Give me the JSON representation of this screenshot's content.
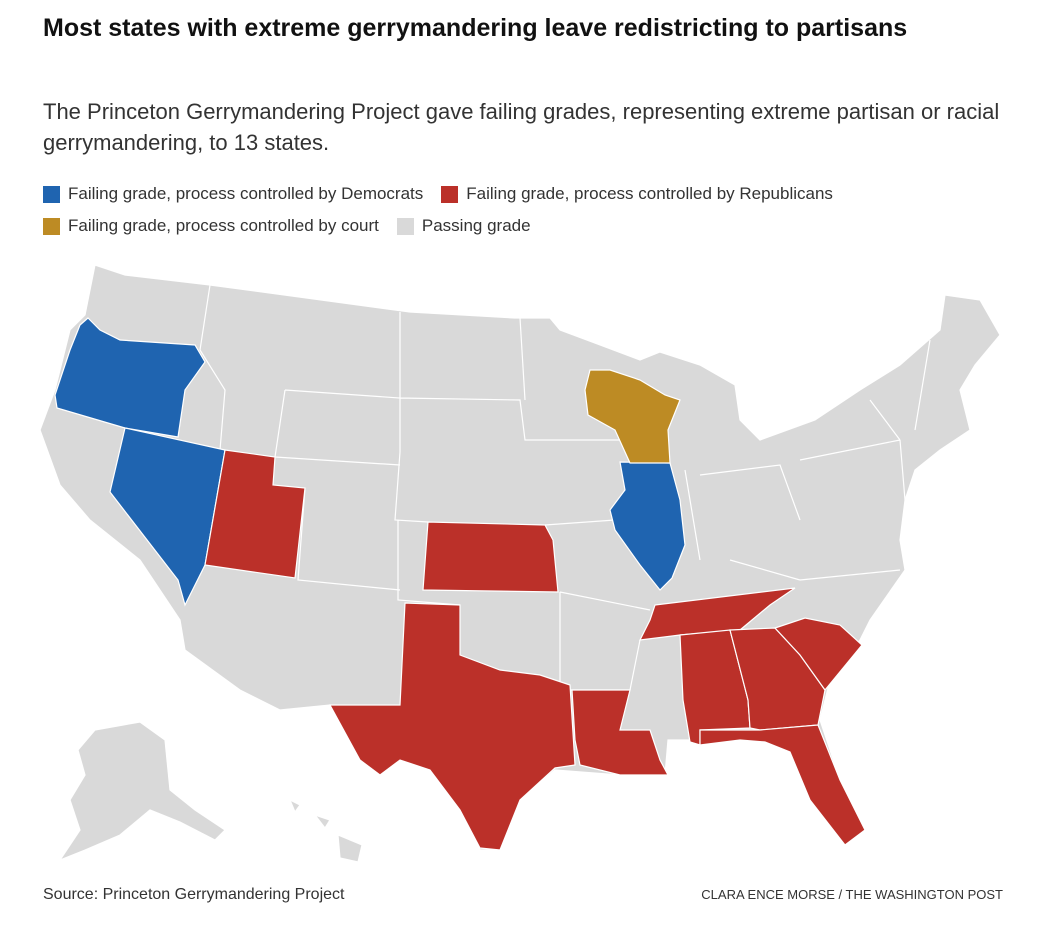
{
  "title": "Most states with extreme gerrymandering leave redistricting to partisans",
  "subtitle": "The Princeton Gerrymandering Project gave failing grades, representing extreme partisan or racial gerrymandering, to 13 states.",
  "legend": [
    {
      "label": "Failing grade, process controlled by Democrats",
      "color": "#1f64b0"
    },
    {
      "label": "Failing grade, process controlled by Republicans",
      "color": "#bb3029"
    },
    {
      "label": "Failing grade, process controlled by court",
      "color": "#bd8b24"
    },
    {
      "label": "Passing grade",
      "color": "#d9d9d9"
    }
  ],
  "source": "Source: Princeton Gerrymandering Project",
  "credit": "CLARA ENCE MORSE / THE WASHINGTON POST"
}
